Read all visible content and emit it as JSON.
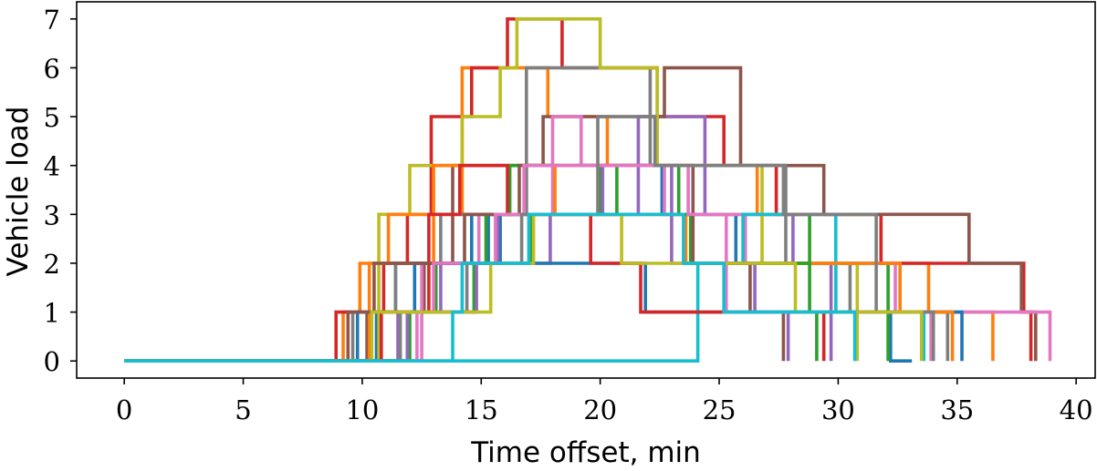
{
  "chart_data": {
    "type": "line",
    "step": true,
    "xlabel": "Time offset, min",
    "ylabel": "Vehicle load",
    "xlim": [
      -2.0,
      40.8
    ],
    "ylim": [
      -0.35,
      7.35
    ],
    "xticks": [
      0,
      5,
      10,
      15,
      20,
      25,
      30,
      35,
      40
    ],
    "yticks": [
      0,
      1,
      2,
      3,
      4,
      5,
      6,
      7
    ],
    "grid": false,
    "legend": "none",
    "colors": [
      "#1f77b4",
      "#ff7f0e",
      "#2ca02c",
      "#d62728",
      "#9467bd",
      "#8c564b",
      "#e377c2",
      "#7f7f7f",
      "#bcbd22",
      "#17becf"
    ],
    "series": [
      {
        "x": [
          0,
          10.6,
          11.4,
          15.3,
          16.9,
          22.6,
          25.7,
          29.9,
          32.2,
          33.1
        ],
        "y": [
          0,
          1,
          2,
          3,
          4,
          3,
          2,
          1,
          0,
          0
        ]
      },
      {
        "x": [
          0,
          9.2,
          9.9,
          13.0,
          14.2,
          17.8,
          20.3,
          26.6,
          31.8,
          33.8,
          36.5
        ],
        "y": [
          0,
          1,
          2,
          3,
          6,
          5,
          4,
          3,
          2,
          1,
          0
        ]
      },
      {
        "x": [
          0,
          12.0,
          14.7,
          17.1,
          20.7,
          23.3,
          28.8,
          32.1
        ],
        "y": [
          0,
          1,
          2,
          3,
          4,
          3,
          2,
          0
        ]
      },
      {
        "x": [
          0,
          8.9,
          10.9,
          11.9,
          12.9,
          14.6,
          16.1,
          18.4,
          22.4,
          25.2,
          27.4,
          30.7,
          31.8,
          36.8,
          37.8,
          38.1
        ],
        "y": [
          0,
          1,
          2,
          3,
          5,
          6,
          7,
          6,
          5,
          4,
          3,
          3,
          2,
          2,
          1,
          0
        ]
      },
      {
        "x": [
          0,
          11.5,
          14.8,
          17.9,
          21.6,
          24.4,
          28.1,
          29.7
        ],
        "y": [
          0,
          1,
          2,
          3,
          5,
          3,
          2,
          0
        ]
      },
      {
        "x": [
          0,
          10.2,
          12.6,
          13.8,
          17.6,
          22.7,
          25.9,
          29.4,
          35.5,
          37.7,
          38.3
        ],
        "y": [
          0,
          1,
          2,
          4,
          5,
          6,
          4,
          3,
          2,
          1,
          0
        ]
      },
      {
        "x": [
          0,
          11.4,
          12.5,
          14.9,
          18.0,
          19.2,
          22.7,
          26.1,
          32.4,
          36.7,
          38.9
        ],
        "y": [
          0,
          0,
          2,
          3,
          5,
          4,
          3,
          2,
          1,
          1,
          0
        ]
      },
      {
        "x": [
          0,
          9.6,
          11.4,
          13.3,
          16.9,
          19.5,
          22.1,
          27.8,
          30.5,
          34.6
        ],
        "y": [
          0,
          1,
          2,
          3,
          6,
          6,
          4,
          2,
          1,
          0
        ]
      },
      {
        "x": [
          0,
          10.7,
          12.0,
          14.2,
          15.8,
          16.5,
          20.0,
          22.4,
          26.8,
          30.8
        ],
        "y": [
          0,
          3,
          4,
          5,
          6,
          7,
          6,
          4,
          2,
          0
        ]
      },
      {
        "x": [
          0,
          13.6,
          15.4,
          19.1,
          21.6,
          24.1,
          26.0,
          29.9,
          33.6
        ],
        "y": [
          0,
          0,
          0,
          0,
          0,
          2,
          3,
          1,
          0
        ]
      },
      {
        "x": [
          0,
          9.8,
          12.2,
          14.6,
          15.8,
          18.8,
          21.9,
          24.4,
          25.9,
          27.0,
          31.0,
          35.2
        ],
        "y": [
          0,
          1,
          2,
          3,
          2,
          2,
          1,
          1,
          1,
          1,
          1,
          0
        ]
      },
      {
        "x": [
          0,
          10.3,
          11.1,
          13.0,
          15.6,
          18.1,
          20.6,
          23.6,
          27.1,
          30.0,
          32.6,
          34.8
        ],
        "y": [
          0,
          2,
          3,
          4,
          4,
          3,
          3,
          2,
          2,
          2,
          1,
          0
        ]
      },
      {
        "x": [
          0,
          11.9,
          13.1,
          15.2,
          16.2,
          20.0,
          23.8,
          28.8,
          29.1
        ],
        "y": [
          0,
          1,
          2,
          3,
          4,
          3,
          2,
          1,
          0
        ]
      },
      {
        "x": [
          0,
          10.8,
          12.8,
          14.1,
          16.1,
          19.6,
          21.7,
          26.5,
          29.4
        ],
        "y": [
          0,
          1,
          3,
          4,
          3,
          2,
          1,
          1,
          0
        ]
      },
      {
        "x": [
          0,
          11.9,
          13.3,
          15.1,
          15.7,
          19.6,
          20.1,
          23.0,
          26.5,
          27.9
        ],
        "y": [
          0,
          1,
          2,
          2,
          3,
          3,
          4,
          2,
          1,
          0
        ]
      },
      {
        "x": [
          0,
          9.4,
          10.5,
          14.3,
          16.6,
          18.8,
          21.9,
          23.9,
          26.3,
          27.7
        ],
        "y": [
          0,
          1,
          2,
          3,
          4,
          4,
          4,
          2,
          1,
          0
        ]
      },
      {
        "x": [
          0,
          12.3,
          13.0,
          15.6,
          16.8,
          23.7,
          25.3,
          31.6,
          33.9
        ],
        "y": [
          0,
          1,
          2,
          3,
          4,
          3,
          1,
          1,
          0
        ]
      },
      {
        "x": [
          0,
          11.6,
          14.4,
          16.7,
          19.9,
          22.3,
          27.7,
          31.6,
          34.0
        ],
        "y": [
          0,
          1,
          2,
          3,
          5,
          4,
          3,
          1,
          0
        ]
      },
      {
        "x": [
          0,
          10.4,
          12.2,
          15.4,
          17.2,
          20.9,
          24.8,
          28.2,
          33.5
        ],
        "y": [
          0,
          1,
          1,
          2,
          3,
          2,
          2,
          1,
          0
        ]
      },
      {
        "x": [
          0,
          13.8,
          14.2,
          15.7,
          17.0,
          21.8,
          23.5,
          25.2,
          28.7,
          30.7
        ],
        "y": [
          0,
          1,
          2,
          2,
          3,
          3,
          2,
          1,
          1,
          0
        ]
      }
    ]
  }
}
